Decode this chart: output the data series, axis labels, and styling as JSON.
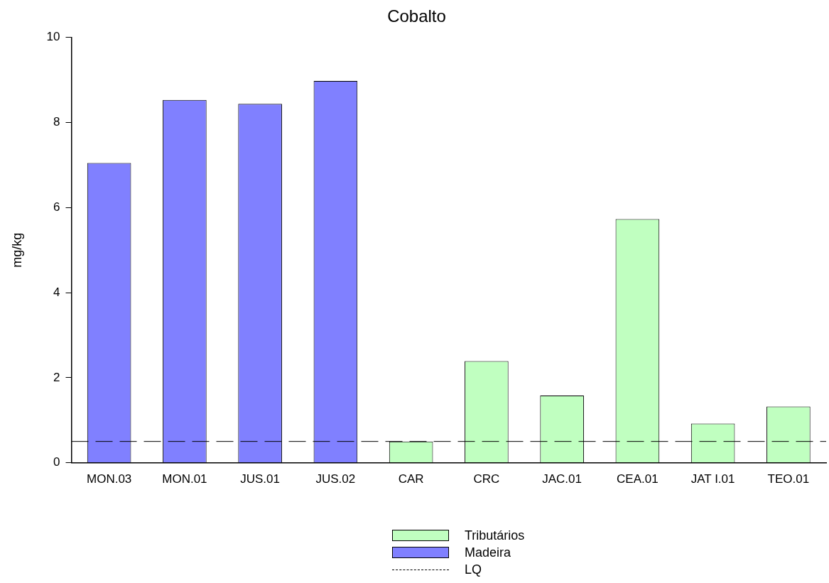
{
  "chart_data": {
    "type": "bar",
    "title": "Cobalto",
    "ylabel": "mg/kg",
    "categories": [
      "MON.03",
      "MON.01",
      "JUS.01",
      "JUS.02",
      "CAR",
      "CRC",
      "JAC.01",
      "CEA.01",
      "JAT I.01",
      "TEO.01"
    ],
    "series": [
      {
        "name": "Tributários",
        "color": "#c0ffc0",
        "values": [
          null,
          null,
          null,
          null,
          0.5,
          2.39,
          1.58,
          5.73,
          0.92,
          1.32
        ]
      },
      {
        "name": "Madeira",
        "color": "#8080ff",
        "values": [
          7.05,
          8.53,
          8.44,
          8.98,
          null,
          null,
          null,
          null,
          null,
          null
        ]
      }
    ],
    "ylim": [
      0,
      10
    ],
    "yticks": [
      0,
      2,
      4,
      6,
      8,
      10
    ],
    "grid": false,
    "legend": "bottom",
    "ref_lines": [
      {
        "axis": "y",
        "value": 0.5,
        "label": "LQ",
        "color": "#000000",
        "line_style": "dashed"
      }
    ]
  }
}
